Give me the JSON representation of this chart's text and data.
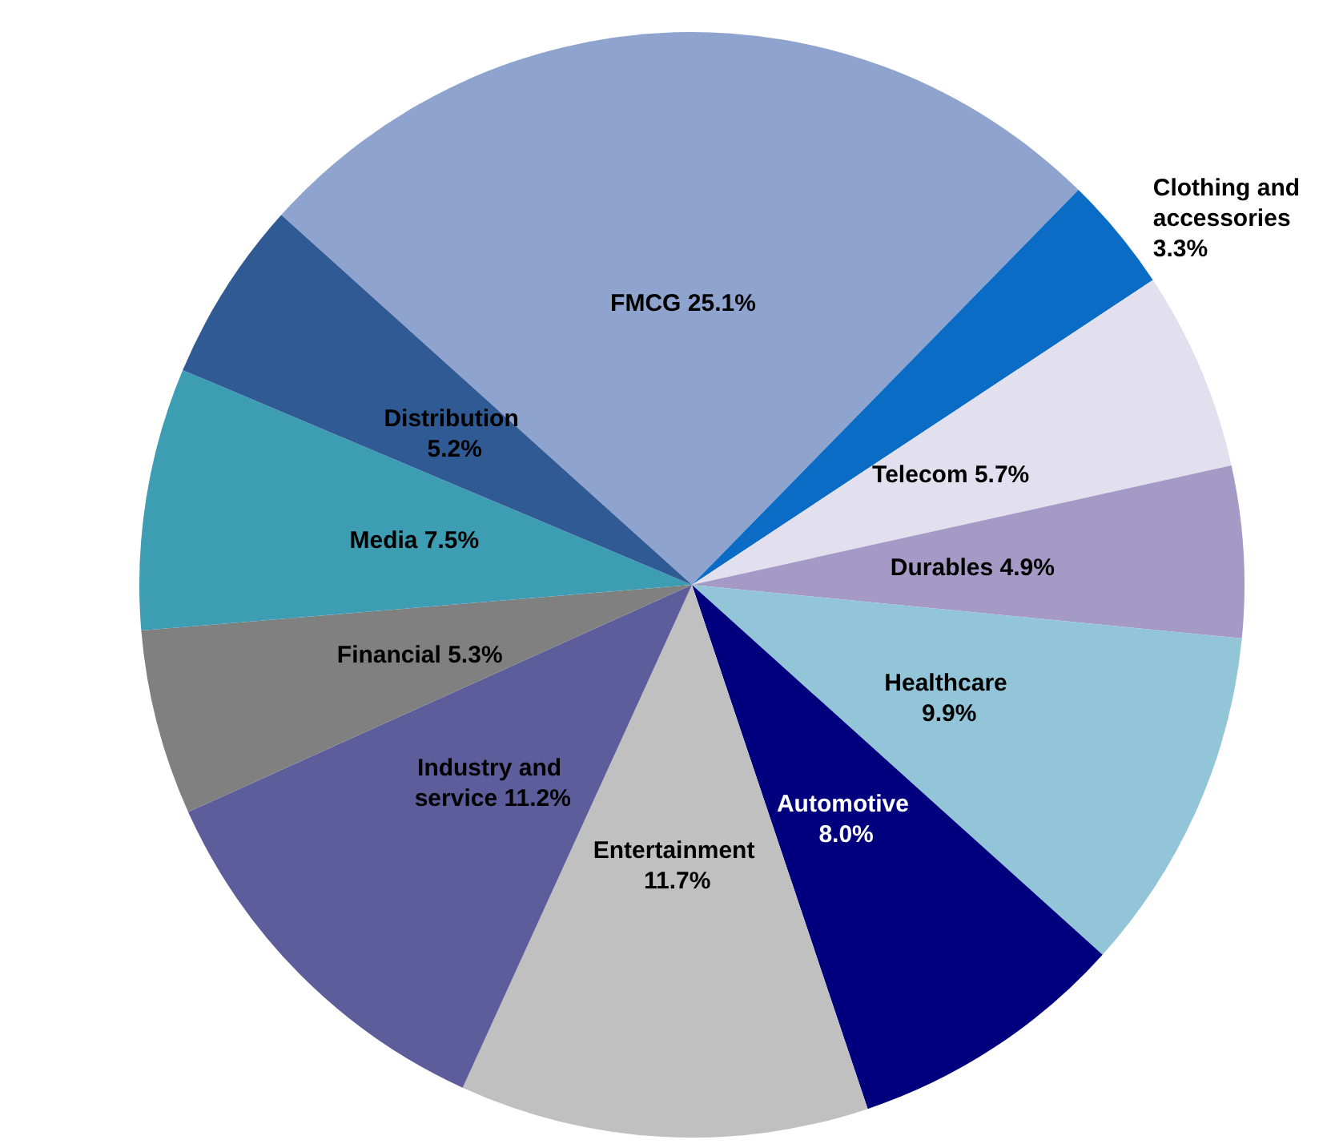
{
  "chart_data": {
    "type": "pie",
    "categories": [
      "FMCG",
      "Clothing and accessories",
      "Telecom",
      "Durables",
      "Healthcare",
      "Automotive",
      "Entertainment",
      "Industry and service",
      "Financial",
      "Media",
      "Distribution"
    ],
    "values": [
      25.1,
      3.3,
      5.7,
      4.9,
      9.9,
      8.0,
      11.7,
      11.2,
      5.3,
      7.5,
      5.2
    ],
    "value_labels": [
      "25.1%",
      "3.3%",
      "5.7%",
      "4.9%",
      "9.9%",
      "8.0%",
      "11.7%",
      "11.2%",
      "5.3%",
      "7.5%",
      "5.2%"
    ],
    "colors": [
      "#8fa3cf",
      "#0a6cc4",
      "#e2dfee",
      "#a59ac6",
      "#93c5d8",
      "#00007f",
      "#c0c0c0",
      "#5d5d9b",
      "#808080",
      "#3d9db3",
      "#2f5a94"
    ],
    "legend": false
  }
}
